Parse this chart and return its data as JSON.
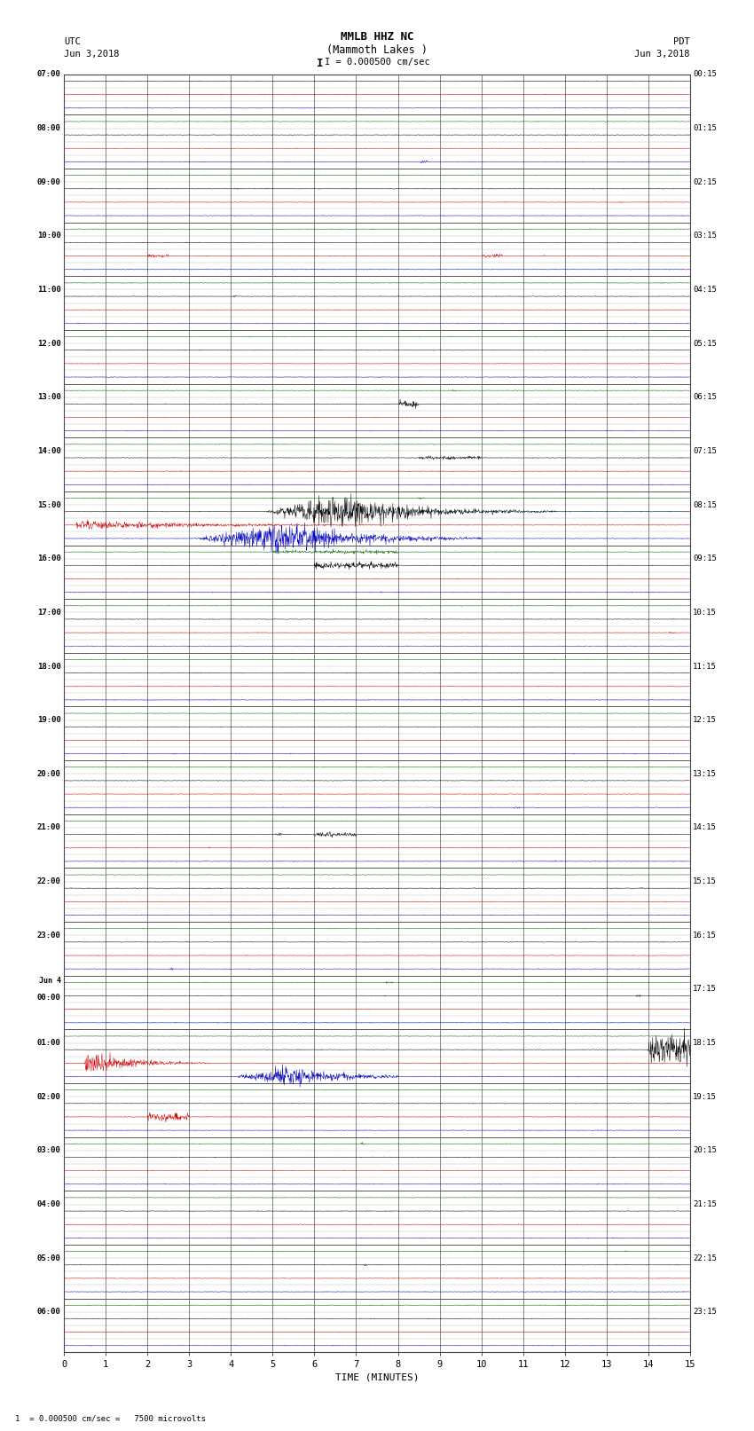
{
  "title_line1": "MMLB HHZ NC",
  "title_line2": "(Mammoth Lakes )",
  "scale_label": "I = 0.000500 cm/sec",
  "left_label": "UTC",
  "left_date": "Jun 3,2018",
  "right_label": "PDT",
  "right_date": "Jun 3,2018",
  "bottom_label": "TIME (MINUTES)",
  "footnote": "1  = 0.000500 cm/sec =   7500 microvolts",
  "background_color": "#ffffff",
  "grid_color_major": "#555555",
  "grid_color_minor": "#aaaaaa",
  "trace_colors": [
    "#000000",
    "#cc0000",
    "#0000bb",
    "#006600"
  ],
  "utc_labels": [
    "07:00",
    "",
    "",
    "",
    "08:00",
    "",
    "",
    "",
    "09:00",
    "",
    "",
    "",
    "10:00",
    "",
    "",
    "",
    "11:00",
    "",
    "",
    "",
    "12:00",
    "",
    "",
    "",
    "13:00",
    "",
    "",
    "",
    "14:00",
    "",
    "",
    "",
    "15:00",
    "",
    "",
    "",
    "16:00",
    "",
    "",
    "",
    "17:00",
    "",
    "",
    "",
    "18:00",
    "",
    "",
    "",
    "19:00",
    "",
    "",
    "",
    "20:00",
    "",
    "",
    "",
    "21:00",
    "",
    "",
    "",
    "22:00",
    "",
    "",
    "",
    "23:00",
    "",
    "",
    "",
    "Jun 4\n00:00",
    "",
    "",
    "",
    "01:00",
    "",
    "",
    "",
    "02:00",
    "",
    "",
    "",
    "03:00",
    "",
    "",
    "",
    "04:00",
    "",
    "",
    "",
    "05:00",
    "",
    "",
    "",
    "06:00",
    "",
    ""
  ],
  "pdt_labels": [
    "00:15",
    "",
    "",
    "",
    "01:15",
    "",
    "",
    "",
    "02:15",
    "",
    "",
    "",
    "03:15",
    "",
    "",
    "",
    "04:15",
    "",
    "",
    "",
    "05:15",
    "",
    "",
    "",
    "06:15",
    "",
    "",
    "",
    "07:15",
    "",
    "",
    "",
    "08:15",
    "",
    "",
    "",
    "09:15",
    "",
    "",
    "",
    "10:15",
    "",
    "",
    "",
    "11:15",
    "",
    "",
    "",
    "12:15",
    "",
    "",
    "",
    "13:15",
    "",
    "",
    "",
    "14:15",
    "",
    "",
    "",
    "15:15",
    "",
    "",
    "",
    "16:15",
    "",
    "",
    "",
    "17:15",
    "",
    "",
    "",
    "18:15",
    "",
    "",
    "",
    "19:15",
    "",
    "",
    "",
    "20:15",
    "",
    "",
    "",
    "21:15",
    "",
    "",
    "",
    "22:15",
    "",
    "",
    "",
    "23:15",
    "",
    ""
  ],
  "n_traces": 95,
  "x_ticks": [
    0,
    1,
    2,
    3,
    4,
    5,
    6,
    7,
    8,
    9,
    10,
    11,
    12,
    13,
    14,
    15
  ],
  "noise_base": 0.025,
  "amp_scale": 0.38,
  "fig_width": 8.5,
  "fig_height": 16.13
}
